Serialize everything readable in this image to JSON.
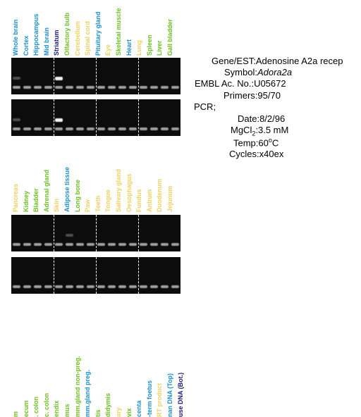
{
  "panel1": {
    "lanes": [
      {
        "label": "Whole brain",
        "color": "#1a90d0",
        "band": "faint"
      },
      {
        "label": "Cortex",
        "color": "#1a90d0",
        "band": "none"
      },
      {
        "label": "Hippocampus",
        "color": "#1a90d0",
        "band": "none"
      },
      {
        "label": "Mid brain",
        "color": "#1a90d0",
        "band": "none"
      },
      {
        "label": "Striatum",
        "color": "#1a1a80",
        "band": "strong"
      },
      {
        "label": "Olfactory bulb",
        "color": "#6cc020",
        "band": "none"
      },
      {
        "label": "Cerebellum",
        "color": "#f0d060",
        "band": "none"
      },
      {
        "label": "Spinal cord",
        "color": "#f0d060",
        "band": "none"
      },
      {
        "label": "Pituitary gland",
        "color": "#1a90d0",
        "band": "none"
      },
      {
        "label": "Eye",
        "color": "#f0d060",
        "band": "none"
      },
      {
        "label": "Skeletal muscle",
        "color": "#6cc020",
        "band": "none"
      },
      {
        "label": "Heart",
        "color": "#1a90d0",
        "band": "none"
      },
      {
        "label": "Lung",
        "color": "#f0d060",
        "band": "none"
      },
      {
        "label": "Spleen",
        "color": "#6cc020",
        "band": "none"
      },
      {
        "label": "Liver",
        "color": "#6cc020",
        "band": "none"
      },
      {
        "label": "Gall bladder",
        "color": "#6cc020",
        "band": "none"
      }
    ]
  },
  "panel2": {
    "lanes": [
      {
        "label": "Pancreas",
        "color": "#f0d060",
        "band": "none"
      },
      {
        "label": "Kidney",
        "color": "#6cc020",
        "band": "none"
      },
      {
        "label": "Bladder",
        "color": "#6cc020",
        "band": "none"
      },
      {
        "label": "Adrenal gland",
        "color": "#6cc020",
        "band": "none"
      },
      {
        "label": "Skin",
        "color": "#f0d060",
        "band": "none"
      },
      {
        "label": "Adipose tissue",
        "color": "#1a90d0",
        "band": "faint"
      },
      {
        "label": "Long bone",
        "color": "#6cc020",
        "band": "none"
      },
      {
        "label": "Paw",
        "color": "#f0d060",
        "band": "none"
      },
      {
        "label": "Teeth",
        "color": "#f0d060",
        "band": "none"
      },
      {
        "label": "Tongue",
        "color": "#f0d060",
        "band": "none"
      },
      {
        "label": "Salivary gland",
        "color": "#f0d060",
        "band": "none"
      },
      {
        "label": "Oesophagus",
        "color": "#f0d060",
        "band": "none"
      },
      {
        "label": "Fundus",
        "color": "#f0d060",
        "band": "none"
      },
      {
        "label": "Antrum",
        "color": "#f0d060",
        "band": "none"
      },
      {
        "label": "Duodenum",
        "color": "#f0d060",
        "band": "none"
      },
      {
        "label": "Jejunum",
        "color": "#f0d060",
        "band": "none"
      }
    ]
  },
  "panel3": {
    "lanes": [
      {
        "label": "m",
        "color": "#6cc020"
      },
      {
        "label": "ecum",
        "color": "#6cc020"
      },
      {
        "label": ". colon",
        "color": "#6cc020"
      },
      {
        "label": "c. colon",
        "color": "#6cc020"
      },
      {
        "label": "endix",
        "color": "#6cc020"
      },
      {
        "label": "mus",
        "color": "#6cc020"
      },
      {
        "label": "mm.gland non-preg.",
        "color": "#6cc020"
      },
      {
        "label": "mm.gland preg.",
        "color": "#1a90d0"
      },
      {
        "label": "tis",
        "color": "#6cc020"
      },
      {
        "label": "didymis",
        "color": "#6cc020"
      },
      {
        "label": "ary",
        "color": "#f0d060"
      },
      {
        "label": "vix",
        "color": "#6cc020"
      },
      {
        "label": "centa",
        "color": "#1a90d0"
      },
      {
        "label": "-term foetus",
        "color": "#1a90d0"
      },
      {
        "label": "RT product",
        "color": "#f0d060"
      },
      {
        "label": "nan DNA (Top)",
        "color": "#1a90d0"
      },
      {
        "label": "use DNA (Bot.)",
        "color": "#1a1a80"
      }
    ]
  },
  "info": {
    "gene_key": "Gene/EST:",
    "gene_val": "Adenosine A2a recep",
    "symbol_key": "Symbol:",
    "symbol_val": "Adora2a",
    "embl_key": "EMBL Ac. No.:",
    "embl_val": "U05672",
    "primers_key": "Primers:",
    "primers_val": "95/70",
    "pcr_label": "PCR;",
    "date_key": "Date:",
    "date_val": "8/2/96",
    "mgcl_key": "MgCl",
    "mgcl_sub": "2",
    "mgcl_colon": ":",
    "mgcl_val": "3.5 mM",
    "temp_key": "Temp:",
    "temp_val": "60",
    "temp_sup": "o",
    "temp_unit": "C",
    "cycles_key": "Cycles:",
    "cycles_val": "x40ex"
  }
}
